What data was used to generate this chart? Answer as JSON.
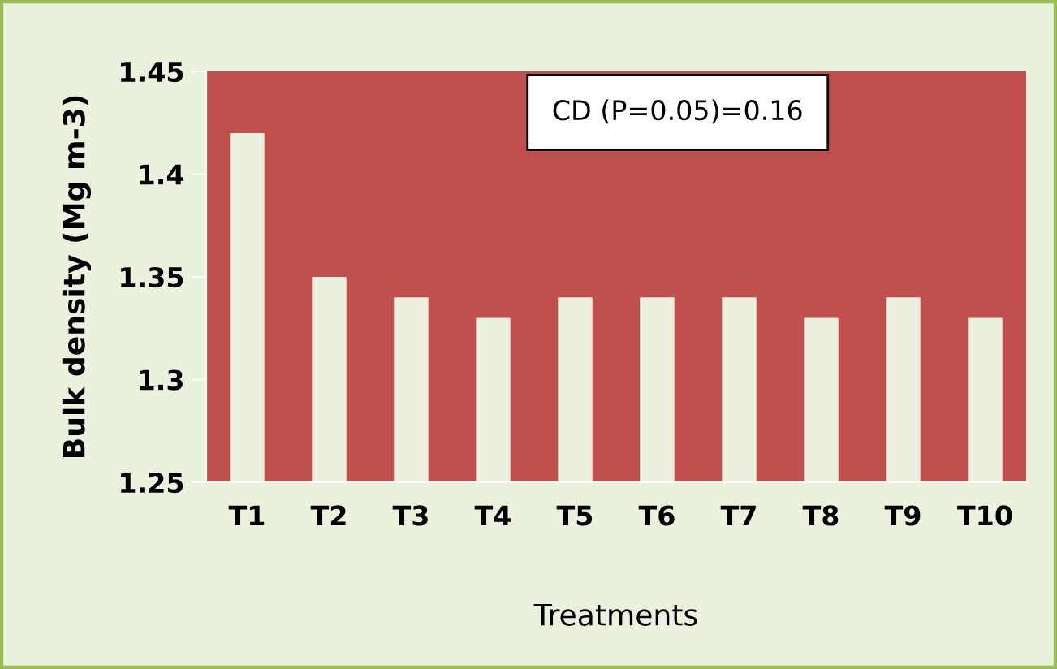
{
  "chart_data": {
    "type": "bar",
    "xlabel": "Treatments",
    "ylabel": "Bulk density (Mg m-3)",
    "categories": [
      "T1",
      "T2",
      "T3",
      "T4",
      "T5",
      "T6",
      "T7",
      "T8",
      "T9",
      "T10"
    ],
    "values": [
      1.42,
      1.35,
      1.34,
      1.33,
      1.34,
      1.34,
      1.34,
      1.33,
      1.34,
      1.33
    ],
    "color": "#ebf1de",
    "ylim": [
      1.25,
      1.45
    ],
    "yticks": [
      1.25,
      1.3,
      1.35,
      1.4,
      1.45
    ],
    "grid": false,
    "annotations": [
      "CD (P=0.05)=0.16"
    ]
  }
}
